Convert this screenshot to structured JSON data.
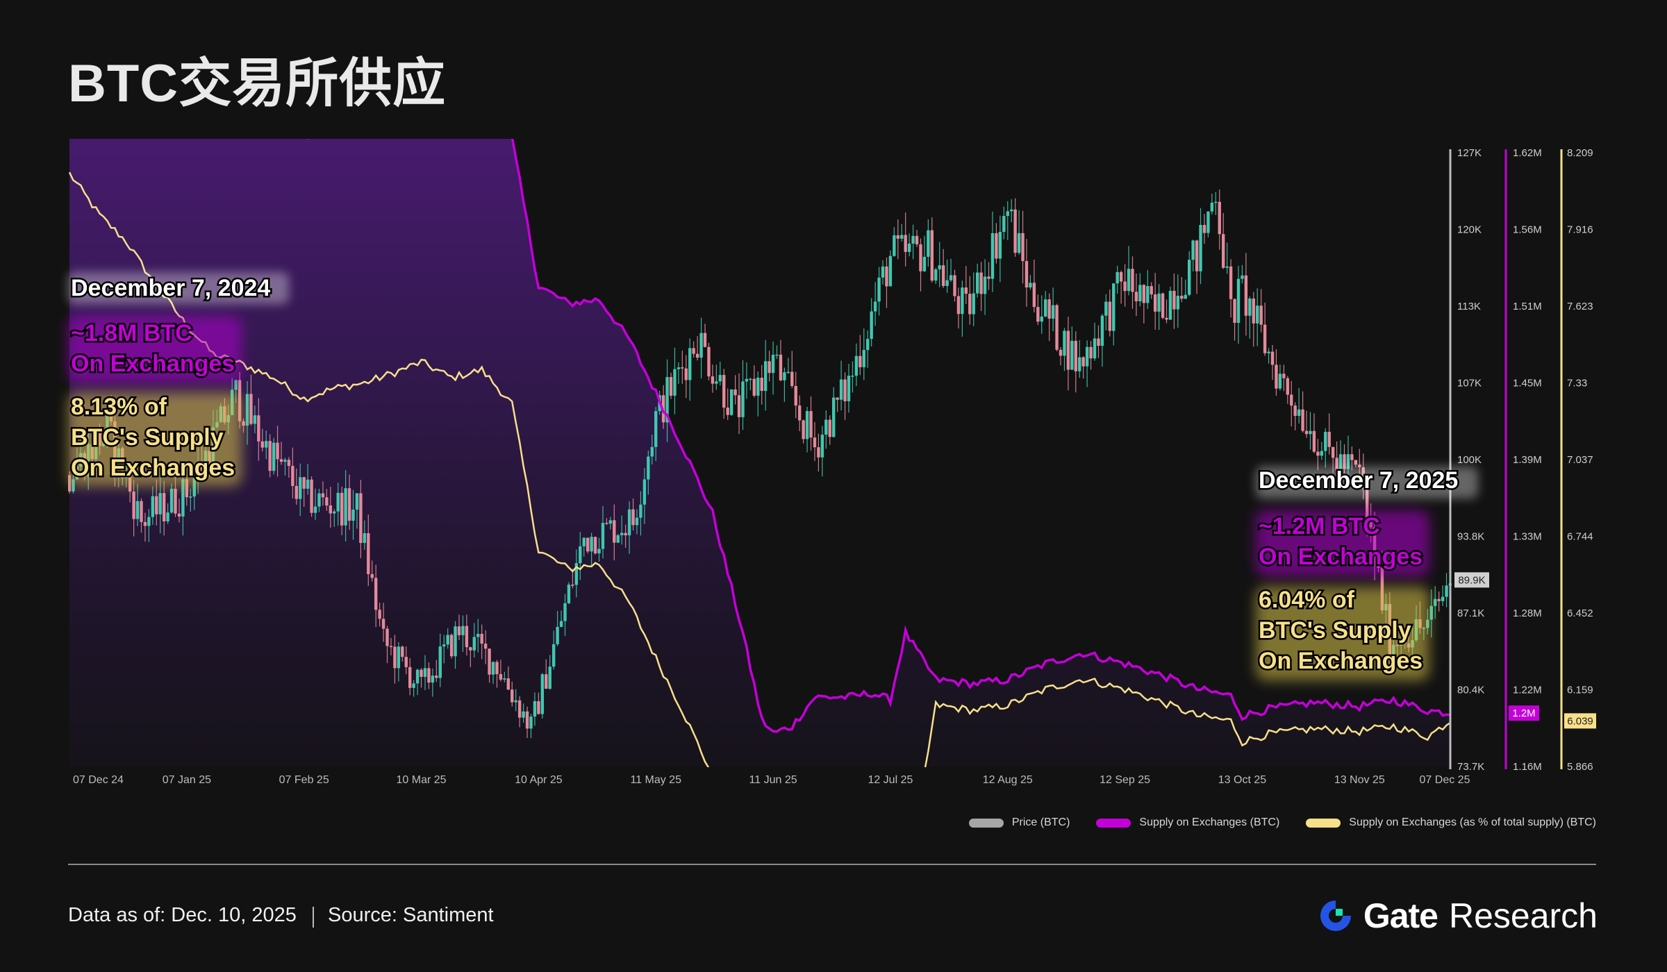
{
  "title": "BTC交易所供应",
  "chart_data": {
    "type": "line",
    "title": "BTC交易所供应",
    "x_ticks": [
      "07 Dec 24",
      "07 Jan 25",
      "07 Feb 25",
      "10 Mar 25",
      "10 Apr 25",
      "11 May 25",
      "11 Jun 25",
      "12 Jul 25",
      "12 Aug 25",
      "12 Sep 25",
      "13 Oct 25",
      "13 Nov 25",
      "07 Dec 25"
    ],
    "axes": {
      "price": {
        "ticks": [
          "127K",
          "120K",
          "113K",
          "107K",
          "100K",
          "93.8K",
          "87.1K",
          "80.4K",
          "73.7K"
        ],
        "range": [
          73700,
          127000
        ],
        "current_label": "89.9K",
        "color": "#bdbdbd"
      },
      "supply": {
        "ticks": [
          "1.62M",
          "1.56M",
          "1.51M",
          "1.45M",
          "1.39M",
          "1.33M",
          "1.28M",
          "1.22M",
          "1.16M"
        ],
        "range": [
          1160000,
          1620000
        ],
        "current_label": "1.2M",
        "color": "#c400d8"
      },
      "percent": {
        "ticks": [
          "8.209",
          "7.916",
          "7.623",
          "7.33",
          "7.037",
          "6.744",
          "6.452",
          "6.159",
          "5.866"
        ],
        "range": [
          5.866,
          8.209
        ],
        "current_label": "6.039",
        "color": "#f7e08a"
      }
    },
    "series": [
      {
        "name": "Price (BTC)",
        "axis": "price",
        "style": "candlestick",
        "color": "#bdbdbd",
        "x": [
          "2024-12-07",
          "2024-12-17",
          "2024-12-26",
          "2025-01-07",
          "2025-01-20",
          "2025-01-28",
          "2025-02-07",
          "2025-02-21",
          "2025-02-28",
          "2025-03-10",
          "2025-03-20",
          "2025-03-30",
          "2025-04-08",
          "2025-04-22",
          "2025-05-05",
          "2025-05-11",
          "2025-05-22",
          "2025-06-01",
          "2025-06-11",
          "2025-06-22",
          "2025-07-01",
          "2025-07-12",
          "2025-07-22",
          "2025-08-01",
          "2025-08-12",
          "2025-08-18",
          "2025-08-31",
          "2025-09-12",
          "2025-09-20",
          "2025-10-01",
          "2025-10-06",
          "2025-10-10",
          "2025-10-13",
          "2025-10-22",
          "2025-11-04",
          "2025-11-13",
          "2025-11-21",
          "2025-12-01",
          "2025-12-07"
        ],
        "values": [
          99000,
          103000,
          95000,
          97500,
          106000,
          101500,
          97000,
          96000,
          84500,
          80500,
          85500,
          82500,
          77000,
          93500,
          95000,
          104000,
          111000,
          104500,
          109000,
          101500,
          107000,
          118000,
          118500,
          113000,
          122000,
          115000,
          108500,
          116000,
          113000,
          118000,
          124000,
          113000,
          115000,
          108000,
          101000,
          99000,
          84500,
          86000,
          89900
        ]
      },
      {
        "name": "Supply on Exchanges (BTC)",
        "axis": "supply",
        "style": "line-area",
        "color": "#c400d8",
        "x": [
          "2024-12-07",
          "2024-12-15",
          "2024-12-22",
          "2024-12-30",
          "2025-01-07",
          "2025-01-14",
          "2025-01-22",
          "2025-01-30",
          "2025-02-07",
          "2025-02-15",
          "2025-02-23",
          "2025-03-03",
          "2025-03-10",
          "2025-03-18",
          "2025-03-26",
          "2025-04-03",
          "2025-04-10",
          "2025-04-18",
          "2025-04-26",
          "2025-05-04",
          "2025-05-11",
          "2025-05-18",
          "2025-05-26",
          "2025-06-03",
          "2025-06-08",
          "2025-06-11",
          "2025-06-16",
          "2025-06-22",
          "2025-07-01",
          "2025-07-07",
          "2025-07-12",
          "2025-07-16",
          "2025-07-24",
          "2025-08-03",
          "2025-08-12",
          "2025-08-22",
          "2025-09-01",
          "2025-09-12",
          "2025-09-22",
          "2025-10-01",
          "2025-10-10",
          "2025-10-13",
          "2025-10-20",
          "2025-11-01",
          "2025-11-13",
          "2025-11-22",
          "2025-12-01",
          "2025-12-07"
        ],
        "values": [
          1800000,
          1770000,
          1750000,
          1720000,
          1690000,
          1670000,
          1660000,
          1650000,
          1633000,
          1640000,
          1645000,
          1652000,
          1660000,
          1650000,
          1655000,
          1630000,
          1520000,
          1507000,
          1510000,
          1480000,
          1440000,
          1400000,
          1350000,
          1260000,
          1195000,
          1185000,
          1190000,
          1212000,
          1212000,
          1215000,
          1210000,
          1260000,
          1225000,
          1222000,
          1225000,
          1237000,
          1245000,
          1237000,
          1228000,
          1218000,
          1213000,
          1198000,
          1203000,
          1208000,
          1205000,
          1210000,
          1202000,
          1200000
        ]
      },
      {
        "name": "Supply on Exchanges (as % of total supply) (BTC)",
        "axis": "percent",
        "style": "line",
        "color": "#f7e08a",
        "x": [
          "2024-12-07",
          "2024-12-15",
          "2024-12-22",
          "2024-12-30",
          "2025-01-07",
          "2025-01-14",
          "2025-01-22",
          "2025-01-30",
          "2025-02-07",
          "2025-02-15",
          "2025-02-23",
          "2025-03-03",
          "2025-03-10",
          "2025-03-18",
          "2025-03-26",
          "2025-04-03",
          "2025-04-10",
          "2025-04-18",
          "2025-04-26",
          "2025-05-04",
          "2025-05-11",
          "2025-05-18",
          "2025-05-26",
          "2025-06-03",
          "2025-06-08",
          "2025-06-11",
          "2025-06-16",
          "2025-06-22",
          "2025-07-01",
          "2025-07-07",
          "2025-07-12",
          "2025-07-16",
          "2025-07-24",
          "2025-08-03",
          "2025-08-12",
          "2025-08-22",
          "2025-09-01",
          "2025-09-12",
          "2025-09-22",
          "2025-10-01",
          "2025-10-10",
          "2025-10-13",
          "2025-10-20",
          "2025-11-01",
          "2025-11-13",
          "2025-11-22",
          "2025-12-01",
          "2025-12-07"
        ],
        "values": [
          8.13,
          7.97,
          7.87,
          7.7,
          7.55,
          7.44,
          7.4,
          7.35,
          7.27,
          7.31,
          7.33,
          7.37,
          7.41,
          7.35,
          7.38,
          7.25,
          6.69,
          6.62,
          6.64,
          6.49,
          6.28,
          6.08,
          5.83,
          5.39,
          5.08,
          5.02,
          5.05,
          5.16,
          5.16,
          5.18,
          5.15,
          5.4,
          6.1,
          6.08,
          6.1,
          6.16,
          6.2,
          6.16,
          6.11,
          6.06,
          6.04,
          5.96,
          5.99,
          6.01,
          6.0,
          6.02,
          5.98,
          6.04
        ]
      }
    ],
    "annotations": [
      {
        "date": "December 7, 2024",
        "supply": "~1.8M BTC On Exchanges",
        "percent": "8.13% of BTC's Supply On Exchanges"
      },
      {
        "date": "December 7, 2025",
        "supply": "~1.2M BTC On Exchanges",
        "percent": "6.04% of BTC's Supply On Exchanges"
      }
    ],
    "legend_position": "bottom-right",
    "grid": false
  },
  "annotation_texts": {
    "a1_date": "December 7, 2024",
    "a1_supply_l1": "~1.8M BTC",
    "a1_supply_l2": "On Exchanges",
    "a1_pct_l1": "8.13% of",
    "a1_pct_l2": "BTC's Supply",
    "a1_pct_l3": "On Exchanges",
    "a2_date": "December 7, 2025",
    "a2_supply_l1": "~1.2M BTC",
    "a2_supply_l2": "On Exchanges",
    "a2_pct_l1": "6.04% of",
    "a2_pct_l2": "BTC's Supply",
    "a2_pct_l3": "On Exchanges"
  },
  "legend": [
    {
      "label": "Price (BTC)",
      "color": "#a6a6a6"
    },
    {
      "label": "Supply on Exchanges (BTC)",
      "color": "#c400d8"
    },
    {
      "label": "Supply on Exchanges (as % of total supply) (BTC)",
      "color": "#f7e08a"
    }
  ],
  "footer": {
    "data_as_of": "Data as of: Dec. 10, 2025",
    "source": "Source:  Santiment",
    "brand_name": "Gate",
    "brand_sub": "Research"
  }
}
